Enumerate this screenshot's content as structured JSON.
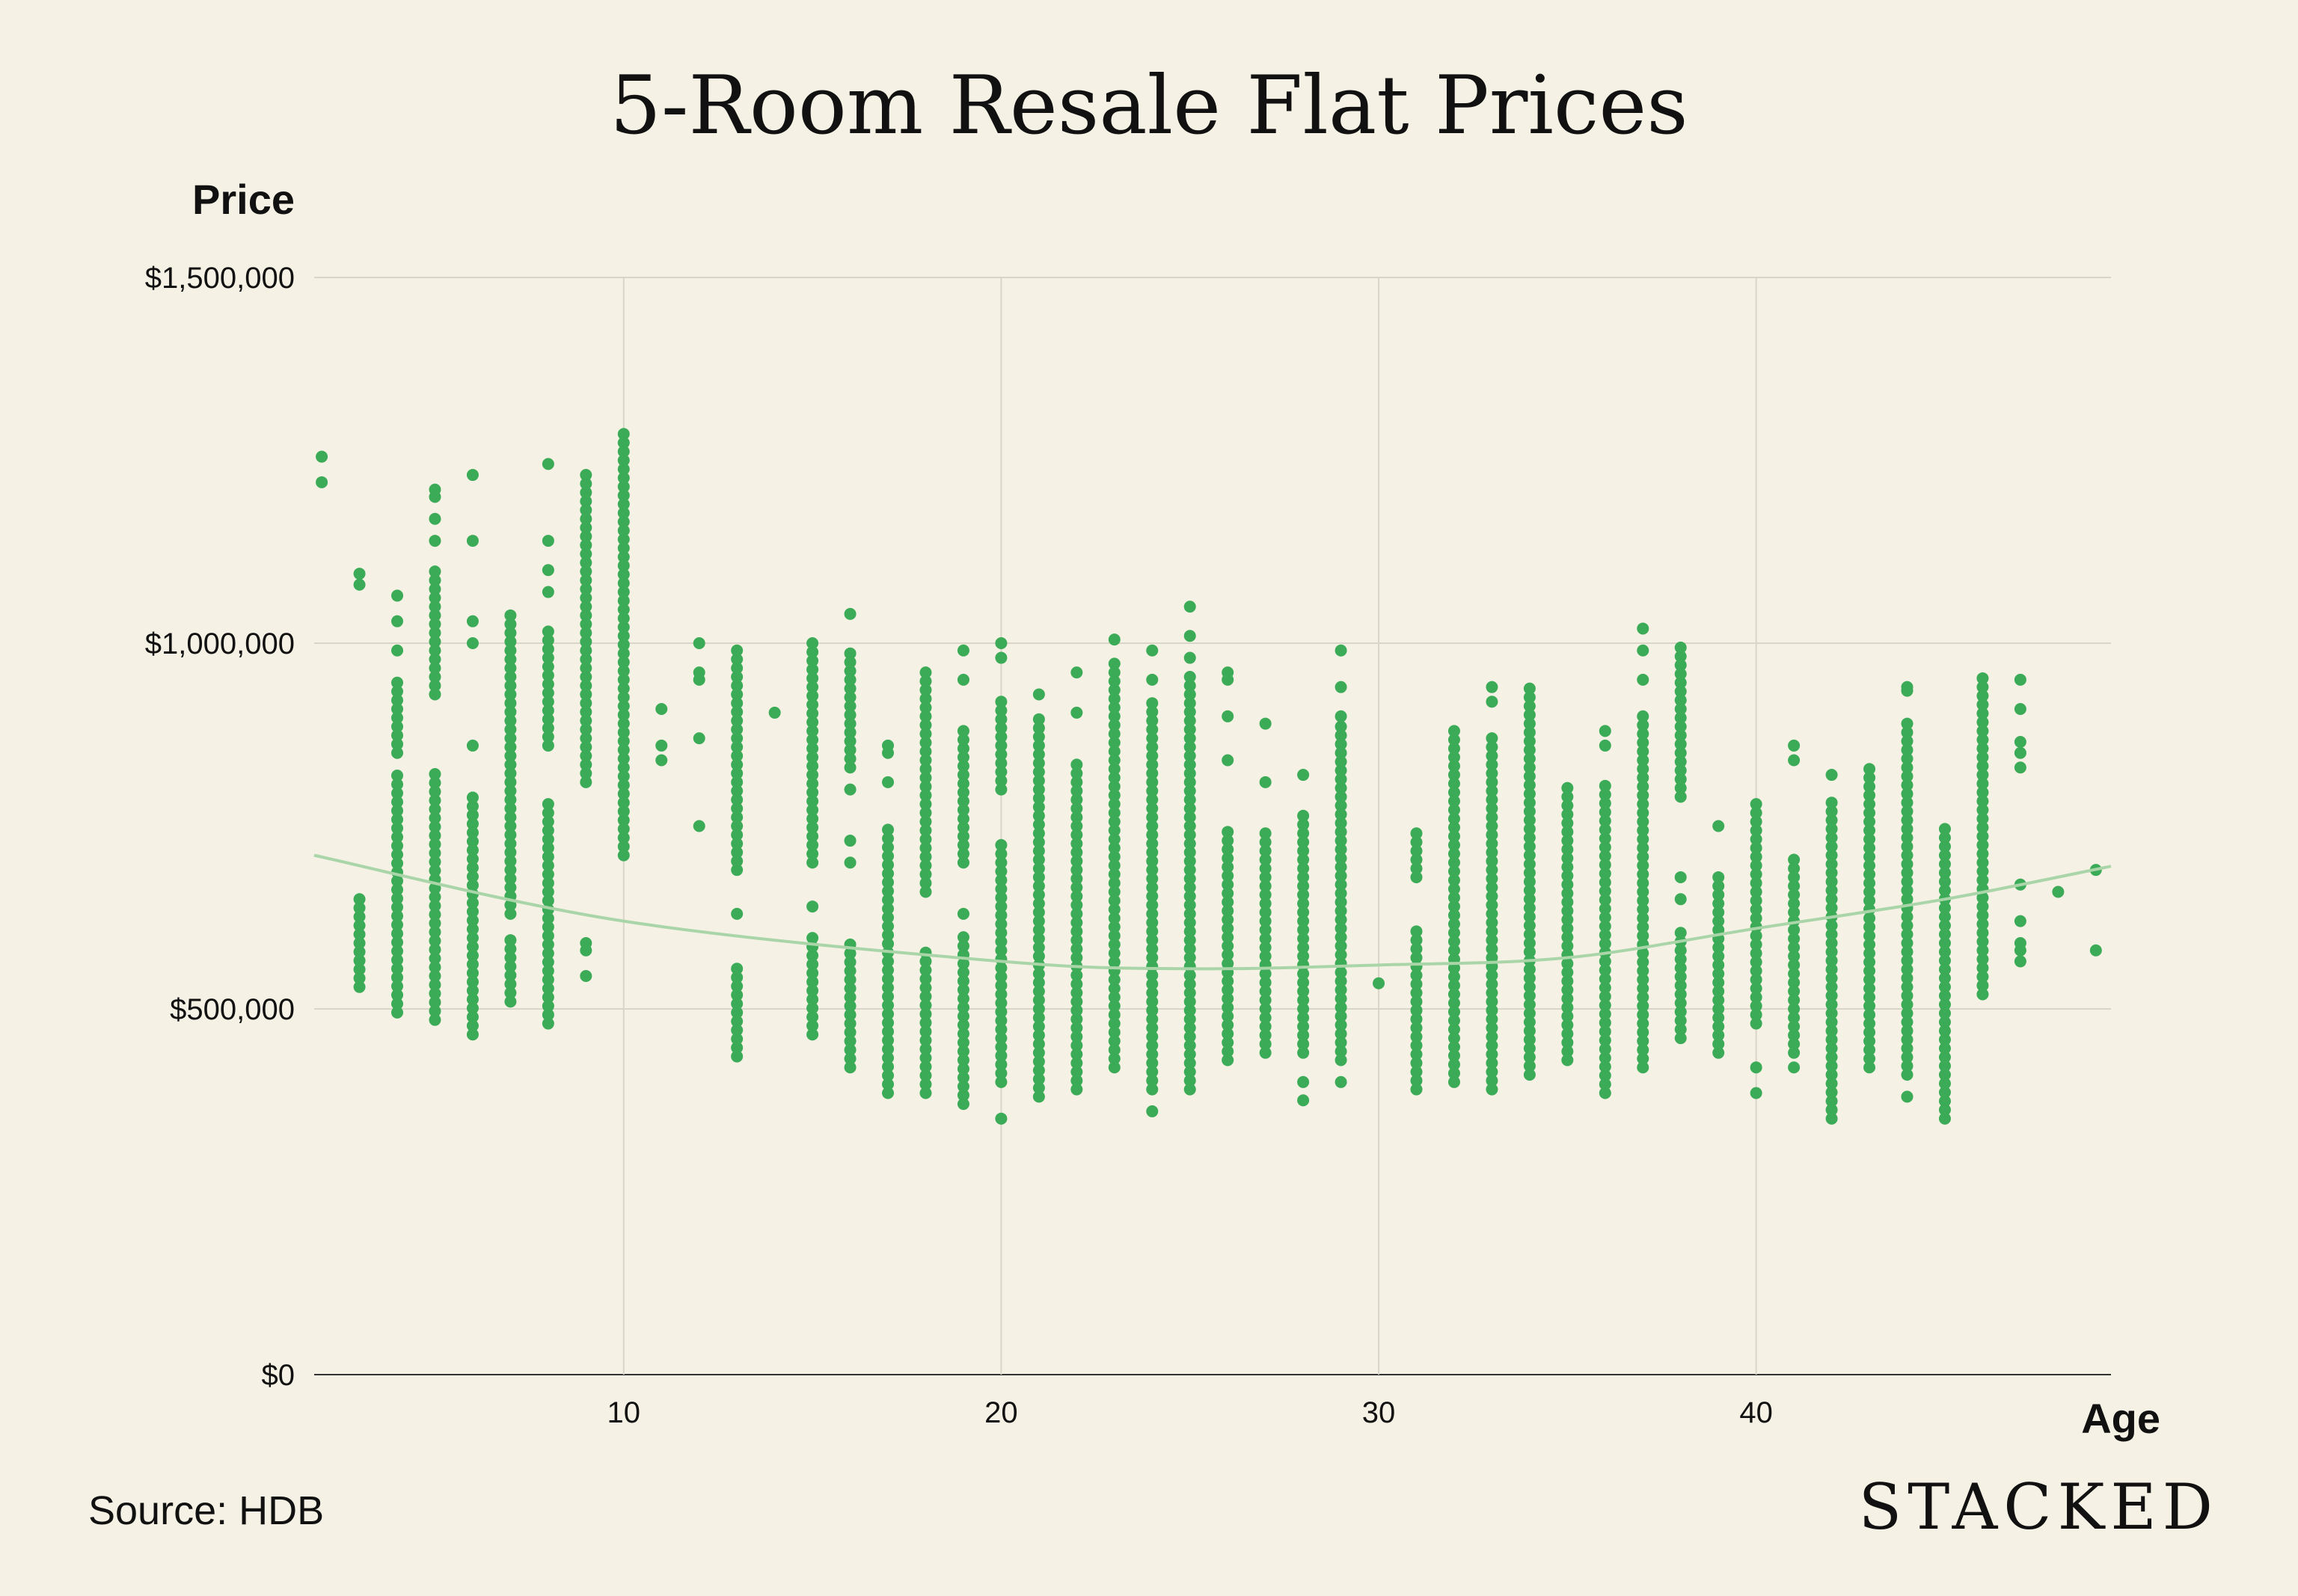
{
  "chart_data": {
    "type": "scatter",
    "title": "5-Room Resale Flat Prices",
    "xlabel": "Age",
    "ylabel": "Price",
    "xlim": [
      1.8,
      49.4
    ],
    "ylim": [
      0,
      1500000
    ],
    "x_ticks": [
      10,
      20,
      30,
      40
    ],
    "y_ticks": [
      {
        "value": 0,
        "label": "$0"
      },
      {
        "value": 500000,
        "label": "$500,000"
      },
      {
        "value": 1000000,
        "label": "$1,000,000"
      },
      {
        "value": 1500000,
        "label": "$1,500,000"
      }
    ],
    "grid": true,
    "point_color": "#3bab57",
    "trendline": {
      "type": "polynomial",
      "color": "#a9d5a8",
      "points": [
        [
          1.8,
          710000
        ],
        [
          10,
          620000
        ],
        [
          20,
          565000
        ],
        [
          25,
          555000
        ],
        [
          30,
          560000
        ],
        [
          35,
          570000
        ],
        [
          40,
          610000
        ],
        [
          45,
          650000
        ],
        [
          49.4,
          695000
        ]
      ]
    },
    "clusters": [
      {
        "x": 2,
        "ranges": [],
        "extras": [
          1255000,
          1220000
        ]
      },
      {
        "x": 3,
        "ranges": [
          [
            530000,
            650000
          ]
        ],
        "extras": [
          1095000,
          1080000
        ]
      },
      {
        "x": 4,
        "ranges": [
          [
            495000,
            830000
          ],
          [
            850000,
            950000
          ]
        ],
        "extras": [
          1065000,
          1030000,
          990000
        ]
      },
      {
        "x": 5,
        "ranges": [
          [
            485000,
            830000
          ],
          [
            930000,
            1100000
          ]
        ],
        "extras": [
          1210000,
          1200000,
          1170000,
          1140000
        ]
      },
      {
        "x": 6,
        "ranges": [
          [
            465000,
            800000
          ]
        ],
        "extras": [
          1230000,
          1140000,
          1030000,
          1000000,
          860000
        ]
      },
      {
        "x": 7,
        "ranges": [
          [
            510000,
            600000
          ],
          [
            630000,
            1040000
          ]
        ],
        "extras": []
      },
      {
        "x": 8,
        "ranges": [
          [
            480000,
            780000
          ],
          [
            860000,
            1020000
          ]
        ],
        "extras": [
          1245000,
          1140000,
          1100000,
          1070000
        ]
      },
      {
        "x": 9,
        "ranges": [
          [
            810000,
            1240000
          ]
        ],
        "extras": [
          590000,
          580000,
          545000
        ]
      },
      {
        "x": 10,
        "ranges": [
          [
            710000,
            1290000
          ]
        ],
        "extras": []
      },
      {
        "x": 11,
        "ranges": [],
        "extras": [
          910000,
          860000,
          840000
        ]
      },
      {
        "x": 12,
        "ranges": [],
        "extras": [
          1000000,
          960000,
          950000,
          870000,
          750000
        ]
      },
      {
        "x": 13,
        "ranges": [
          [
            435000,
            560000
          ],
          [
            690000,
            990000
          ]
        ],
        "extras": [
          630000
        ]
      },
      {
        "x": 14,
        "ranges": [],
        "extras": [
          905000
        ]
      },
      {
        "x": 15,
        "ranges": [
          [
            465000,
            600000
          ],
          [
            700000,
            1000000
          ]
        ],
        "extras": [
          640000
        ]
      },
      {
        "x": 16,
        "ranges": [
          [
            420000,
            590000
          ],
          [
            830000,
            990000
          ]
        ],
        "extras": [
          1040000,
          800000,
          730000,
          700000
        ]
      },
      {
        "x": 17,
        "ranges": [
          [
            385000,
            750000
          ]
        ],
        "extras": [
          860000,
          850000,
          810000
        ]
      },
      {
        "x": 18,
        "ranges": [
          [
            385000,
            580000
          ],
          [
            660000,
            960000
          ]
        ],
        "extras": []
      },
      {
        "x": 19,
        "ranges": [
          [
            370000,
            600000
          ],
          [
            700000,
            890000
          ]
        ],
        "extras": [
          990000,
          950000,
          630000
        ]
      },
      {
        "x": 20,
        "ranges": [
          [
            400000,
            730000
          ],
          [
            800000,
            930000
          ]
        ],
        "extras": [
          1000000,
          980000,
          350000
        ]
      },
      {
        "x": 21,
        "ranges": [
          [
            380000,
            900000
          ]
        ],
        "extras": [
          930000
        ]
      },
      {
        "x": 22,
        "ranges": [
          [
            390000,
            840000
          ]
        ],
        "extras": [
          960000,
          905000
        ]
      },
      {
        "x": 23,
        "ranges": [
          [
            420000,
            980000
          ]
        ],
        "extras": [
          1005000
        ]
      },
      {
        "x": 24,
        "ranges": [
          [
            390000,
            920000
          ]
        ],
        "extras": [
          990000,
          950000,
          360000
        ]
      },
      {
        "x": 25,
        "ranges": [
          [
            390000,
            960000
          ]
        ],
        "extras": [
          1050000,
          1010000,
          980000
        ]
      },
      {
        "x": 26,
        "ranges": [
          [
            430000,
            750000
          ]
        ],
        "extras": [
          960000,
          950000,
          900000,
          840000
        ]
      },
      {
        "x": 27,
        "ranges": [
          [
            440000,
            740000
          ]
        ],
        "extras": [
          890000,
          810000
        ]
      },
      {
        "x": 28,
        "ranges": [
          [
            440000,
            770000
          ]
        ],
        "extras": [
          820000,
          400000,
          375000
        ]
      },
      {
        "x": 29,
        "ranges": [
          [
            430000,
            890000
          ]
        ],
        "extras": [
          990000,
          940000,
          900000,
          400000
        ]
      },
      {
        "x": 30,
        "ranges": [],
        "extras": [
          535000
        ]
      },
      {
        "x": 31,
        "ranges": [
          [
            390000,
            610000
          ],
          [
            680000,
            750000
          ]
        ],
        "extras": []
      },
      {
        "x": 32,
        "ranges": [
          [
            400000,
            890000
          ]
        ],
        "extras": []
      },
      {
        "x": 33,
        "ranges": [
          [
            390000,
            870000
          ]
        ],
        "extras": [
          940000,
          920000
        ]
      },
      {
        "x": 34,
        "ranges": [
          [
            410000,
            940000
          ]
        ],
        "extras": []
      },
      {
        "x": 35,
        "ranges": [
          [
            430000,
            810000
          ]
        ],
        "extras": []
      },
      {
        "x": 36,
        "ranges": [
          [
            385000,
            810000
          ]
        ],
        "extras": [
          880000,
          860000
        ]
      },
      {
        "x": 37,
        "ranges": [
          [
            420000,
            900000
          ]
        ],
        "extras": [
          1020000,
          990000,
          950000
        ]
      },
      {
        "x": 38,
        "ranges": [
          [
            460000,
            610000
          ],
          [
            790000,
            1000000
          ]
        ],
        "extras": [
          680000,
          650000
        ]
      },
      {
        "x": 39,
        "ranges": [
          [
            440000,
            690000
          ]
        ],
        "extras": [
          750000
        ]
      },
      {
        "x": 40,
        "ranges": [
          [
            480000,
            790000
          ]
        ],
        "extras": [
          420000,
          385000
        ]
      },
      {
        "x": 41,
        "ranges": [
          [
            440000,
            710000
          ]
        ],
        "extras": [
          860000,
          840000,
          420000
        ]
      },
      {
        "x": 42,
        "ranges": [
          [
            350000,
            790000
          ]
        ],
        "extras": [
          820000
        ]
      },
      {
        "x": 43,
        "ranges": [
          [
            420000,
            830000
          ]
        ],
        "extras": []
      },
      {
        "x": 44,
        "ranges": [
          [
            410000,
            900000
          ]
        ],
        "extras": [
          940000,
          935000,
          380000
        ]
      },
      {
        "x": 45,
        "ranges": [
          [
            350000,
            750000
          ]
        ],
        "extras": []
      },
      {
        "x": 46,
        "ranges": [
          [
            520000,
            960000
          ]
        ],
        "extras": []
      },
      {
        "x": 47,
        "ranges": [],
        "extras": [
          950000,
          910000,
          865000,
          850000,
          830000,
          670000,
          620000,
          590000,
          580000,
          565000
        ]
      },
      {
        "x": 48,
        "ranges": [],
        "extras": [
          660000
        ]
      },
      {
        "x": 49,
        "ranges": [],
        "extras": [
          690000,
          580000
        ]
      }
    ]
  },
  "footer": {
    "source": "Source: HDB",
    "brand": "STACKED"
  }
}
